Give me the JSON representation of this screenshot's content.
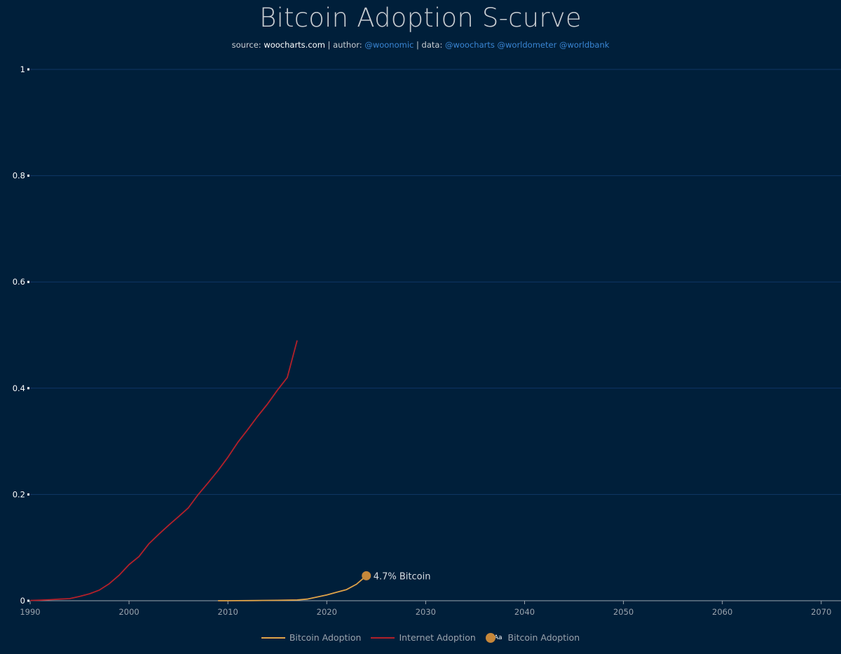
{
  "header": {
    "title": "Bitcoin Adoption S-curve",
    "source_prefix": "source: ",
    "source_site": "woocharts.com",
    "author_prefix": " | author: ",
    "author_handle": "@woonomic",
    "data_prefix": " | data: ",
    "data_handles": "@woocharts @worldometer @worldbank"
  },
  "colors": {
    "background": "#001f3a",
    "grid": "#0f3766",
    "bitcoin": "#e0a349",
    "internet": "#b3202a",
    "marker": "#c6873a",
    "axis_text": "#9aa3ad",
    "yaxis_text": "#ffffff"
  },
  "legend": [
    {
      "label": "Bitcoin Adoption",
      "kind": "line",
      "color_key": "bitcoin"
    },
    {
      "label": "Internet Adoption",
      "kind": "line",
      "color_key": "internet"
    },
    {
      "label": "Bitcoin Adoption",
      "kind": "marker",
      "color_key": "marker",
      "glyph": "Aa"
    }
  ],
  "chart_data": {
    "type": "line",
    "title": "Bitcoin Adoption S-curve",
    "xlabel": "",
    "ylabel": "",
    "xlim": [
      1990,
      2072
    ],
    "ylim": [
      0,
      1
    ],
    "grid": true,
    "legend_position": "bottom-center",
    "x_ticks": [
      "1990",
      "2000",
      "2010",
      "2020",
      "2030",
      "2040",
      "2050",
      "2060",
      "2070"
    ],
    "y_ticks": [
      "0",
      "0.2",
      "0.4",
      "0.6",
      "0.8",
      "1"
    ],
    "series": [
      {
        "name": "Internet Adoption",
        "color_key": "internet",
        "x": [
          1990,
          1991,
          1992,
          1993,
          1994,
          1995,
          1996,
          1997,
          1998,
          1999,
          2000,
          2001,
          2002,
          2003,
          2004,
          2005,
          2006,
          2007,
          2008,
          2009,
          2010,
          2011,
          2012,
          2013,
          2014,
          2015,
          2016,
          2017
        ],
        "values": [
          0.0005,
          0.001,
          0.002,
          0.003,
          0.004,
          0.008,
          0.013,
          0.02,
          0.032,
          0.048,
          0.068,
          0.083,
          0.107,
          0.125,
          0.142,
          0.158,
          0.175,
          0.2,
          0.222,
          0.245,
          0.27,
          0.298,
          0.322,
          0.347,
          0.37,
          0.396,
          0.42,
          0.49
        ]
      },
      {
        "name": "Bitcoin Adoption",
        "color_key": "bitcoin",
        "x": [
          2009,
          2010,
          2011,
          2012,
          2013,
          2014,
          2015,
          2016,
          2017,
          2018,
          2019,
          2020,
          2021,
          2022,
          2023,
          2024
        ],
        "values": [
          0,
          0,
          0.0001,
          0.0002,
          0.0004,
          0.0006,
          0.0008,
          0.001,
          0.0015,
          0.003,
          0.007,
          0.011,
          0.016,
          0.021,
          0.031,
          0.047
        ]
      }
    ],
    "annotations": [
      {
        "x": 2024,
        "y": 0.047,
        "text": "4.7% Bitcoin"
      }
    ]
  }
}
